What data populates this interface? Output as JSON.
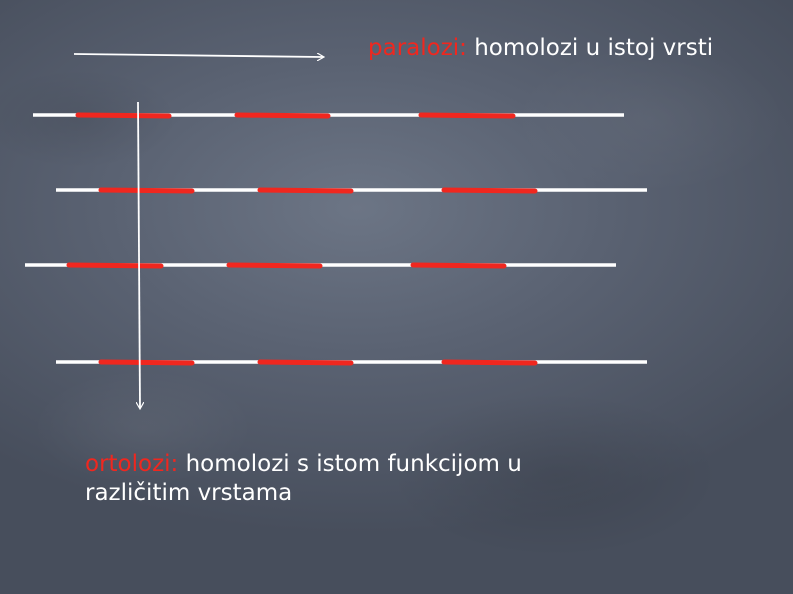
{
  "paralog_caption": {
    "term": "paralozi:",
    "text": "homolozi u istoj vrsti"
  },
  "ortholog_caption": {
    "term": "ortolozi:",
    "text": "homolozi s istom funkcijom u",
    "text_line2": "različitim vrstama"
  },
  "colors": {
    "background": "#5a6272",
    "chromosome_line": "#ffffff",
    "gene_segment": "#f0271f",
    "term_highlight": "#f0271f",
    "arrow": "#ffffff"
  },
  "diagram": {
    "chromosome_count": 4,
    "genes_per_chromosome": 3,
    "paralog_arrow_direction": "horizontal",
    "ortholog_arrow_direction": "vertical"
  }
}
